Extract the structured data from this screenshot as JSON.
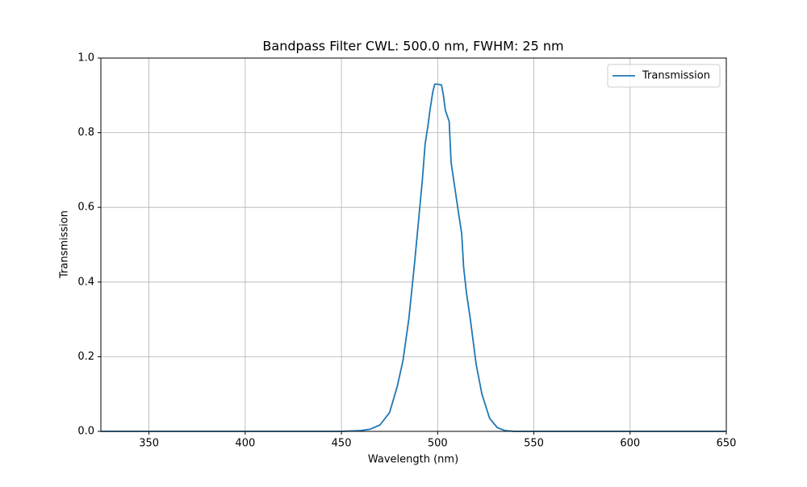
{
  "chart_data": {
    "type": "line",
    "title": "Bandpass Filter CWL: 500.0 nm, FWHM: 25 nm",
    "x_label": "Wavelength (nm)",
    "y_label": "Transmission",
    "x": [
      325,
      400,
      450,
      460,
      465,
      470,
      475,
      479,
      482,
      485,
      488,
      490,
      492,
      493.5,
      495,
      496,
      497.5,
      498.5,
      500,
      502,
      503,
      504,
      506,
      507,
      509,
      511,
      512.5,
      513.5,
      515,
      517,
      520,
      523,
      527,
      531,
      535,
      540,
      550,
      600,
      650
    ],
    "series": [
      {
        "name": "Transmission",
        "color": "#1f77b4",
        "values": [
          0,
          0,
          0,
          0.002,
          0.006,
          0.017,
          0.05,
          0.12,
          0.19,
          0.3,
          0.45,
          0.56,
          0.67,
          0.77,
          0.82,
          0.86,
          0.91,
          0.93,
          0.93,
          0.928,
          0.9,
          0.86,
          0.83,
          0.72,
          0.65,
          0.58,
          0.53,
          0.44,
          0.37,
          0.3,
          0.18,
          0.1,
          0.035,
          0.01,
          0.002,
          0,
          0,
          0,
          0
        ]
      }
    ],
    "xlim": [
      325,
      650
    ],
    "xticks": [
      350,
      400,
      450,
      500,
      550,
      600,
      650
    ],
    "ylim": [
      0,
      1
    ],
    "yticks": [
      {
        "value": 0,
        "label": "0.0"
      },
      0.2,
      0.4,
      0.6,
      0.8,
      {
        "value": 1,
        "label": "1.0"
      }
    ],
    "grid": true,
    "legend": "upper right"
  }
}
